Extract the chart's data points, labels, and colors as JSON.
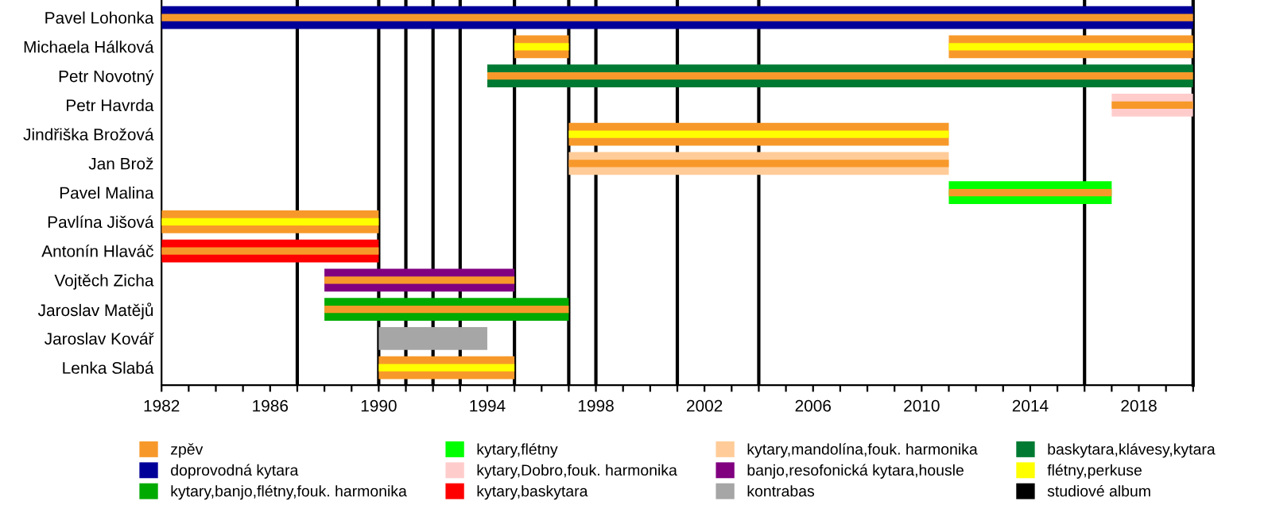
{
  "chart_data": {
    "type": "bar",
    "orientation": "horizontal",
    "categories": [
      "Pavel Lohonka",
      "Michaela Hálková",
      "Petr Novotný",
      "Petr Havrda",
      "Jindřiška Brožová",
      "Jan Brož",
      "Pavel Malina",
      "Pavlína Jišová",
      "Antonín Hlaváč",
      "Vojtěch Zicha",
      "Jaroslav Matějů",
      "Jaroslav Kovář",
      "Lenka Slabá"
    ],
    "series": [
      {
        "name": "zpěv",
        "color": "#f7992a",
        "base": [
          null,
          1995,
          null,
          null,
          1997,
          null,
          null,
          1982,
          null,
          null,
          null,
          null,
          1990
        ],
        "values": [
          null,
          2,
          null,
          null,
          14,
          null,
          null,
          8,
          null,
          null,
          null,
          null,
          5
        ]
      },
      {
        "color": "#f7992a",
        "base": [
          null,
          2011,
          null,
          null,
          null,
          null,
          null,
          null,
          null,
          null,
          null,
          null,
          null
        ],
        "values": [
          null,
          9,
          null,
          null,
          null,
          null,
          null,
          null,
          null,
          null,
          null,
          null,
          null
        ]
      },
      {
        "name": "doprovodná kytara",
        "color": "#000099",
        "base": [
          1982,
          null,
          null,
          null,
          null,
          null,
          null,
          null,
          null,
          null,
          null,
          null,
          null
        ],
        "values": [
          38,
          null,
          null,
          null,
          null,
          null,
          null,
          null,
          null,
          null,
          null,
          null,
          null
        ]
      },
      {
        "name": "kytary,banjo,flétny,fouk. harmonika",
        "color": "#00aa00",
        "base": [
          null,
          null,
          null,
          null,
          null,
          null,
          null,
          null,
          null,
          null,
          1988,
          null,
          null
        ],
        "values": [
          null,
          null,
          null,
          null,
          null,
          null,
          null,
          null,
          null,
          null,
          9,
          null,
          null
        ]
      },
      {
        "name": "kytary,flétny",
        "color": "#00ff00",
        "base": [
          null,
          null,
          null,
          null,
          null,
          null,
          2011,
          null,
          null,
          null,
          null,
          null,
          null
        ],
        "values": [
          null,
          null,
          null,
          null,
          null,
          null,
          6,
          null,
          null,
          null,
          null,
          null,
          null
        ]
      },
      {
        "name": "kytary,Dobro,fouk. harmonika",
        "color": "#ffcccc",
        "base": [
          null,
          null,
          null,
          2017,
          null,
          null,
          null,
          null,
          null,
          null,
          null,
          null,
          null
        ],
        "values": [
          null,
          null,
          null,
          3,
          null,
          null,
          null,
          null,
          null,
          null,
          null,
          null,
          null
        ]
      },
      {
        "name": "kytary,baskytara",
        "color": "#ff0000",
        "base": [
          null,
          null,
          null,
          null,
          null,
          null,
          null,
          null,
          1982,
          null,
          null,
          null,
          null
        ],
        "values": [
          null,
          null,
          null,
          null,
          null,
          null,
          null,
          null,
          8,
          null,
          null,
          null,
          null
        ]
      },
      {
        "name": "kytary,mandolína,fouk. harmonika",
        "color": "#ffcc99",
        "base": [
          null,
          null,
          null,
          null,
          null,
          1997,
          null,
          null,
          null,
          null,
          null,
          null,
          null
        ],
        "values": [
          null,
          null,
          null,
          null,
          null,
          14,
          null,
          null,
          null,
          null,
          null,
          null,
          null
        ]
      },
      {
        "name": "banjo,resofonická kytara,housle",
        "color": "#800080",
        "base": [
          null,
          null,
          null,
          null,
          null,
          null,
          null,
          null,
          null,
          1988,
          null,
          null,
          null
        ],
        "values": [
          null,
          null,
          null,
          null,
          null,
          null,
          null,
          null,
          null,
          7,
          null,
          null,
          null
        ]
      },
      {
        "name": "kontrabas",
        "color": "#a6a6a6",
        "base": [
          null,
          null,
          null,
          null,
          null,
          null,
          null,
          null,
          null,
          null,
          null,
          1990,
          null
        ],
        "values": [
          null,
          null,
          null,
          null,
          null,
          null,
          null,
          null,
          null,
          null,
          null,
          4,
          null
        ]
      },
      {
        "name": "baskytara,klávesy,kytara",
        "color": "#007a33",
        "base": [
          null,
          null,
          1994,
          null,
          null,
          null,
          null,
          null,
          null,
          null,
          null,
          null,
          null
        ],
        "values": [
          null,
          null,
          26,
          null,
          null,
          null,
          null,
          null,
          null,
          null,
          null,
          null,
          null
        ]
      },
      {
        "name": "flétny,perkuse",
        "color": "#ffff00",
        "base": [
          null,
          1995,
          null,
          null,
          1997,
          null,
          null,
          1982,
          null,
          null,
          null,
          null,
          1990
        ],
        "values": [
          null,
          2,
          null,
          null,
          14,
          null,
          null,
          8,
          null,
          null,
          null,
          null,
          5
        ]
      },
      {
        "color": "#ffff00",
        "base": [
          null,
          2011,
          null,
          null,
          null,
          null,
          null,
          null,
          null,
          null,
          null,
          null,
          null
        ],
        "values": [
          null,
          9,
          null,
          null,
          null,
          null,
          null,
          null,
          null,
          null,
          null,
          null,
          null
        ]
      },
      {
        "color": "#f7992a",
        "base": [
          1982,
          null,
          1994,
          2017,
          null,
          1997,
          2011,
          null,
          1982,
          1988,
          1988,
          null,
          null
        ],
        "values": [
          38,
          null,
          26,
          3,
          null,
          14,
          6,
          null,
          8,
          7,
          9,
          null,
          null
        ]
      }
    ],
    "xlim": [
      1982,
      2020
    ],
    "xticks": [
      1982,
      {
        "value": 1983,
        "label": null
      },
      {
        "value": 1984,
        "label": null
      },
      {
        "value": 1985,
        "label": null
      },
      1986,
      {
        "value": 1987,
        "label": null
      },
      {
        "value": 1988,
        "label": null
      },
      {
        "value": 1989,
        "label": null
      },
      1990,
      {
        "value": 1991,
        "label": null
      },
      {
        "value": 1992,
        "label": null
      },
      {
        "value": 1993,
        "label": null
      },
      1994,
      {
        "value": 1995,
        "label": null
      },
      {
        "value": 1996,
        "label": null
      },
      {
        "value": 1997,
        "label": null
      },
      1998,
      {
        "value": 1999,
        "label": null
      },
      {
        "value": 2000,
        "label": null
      },
      {
        "value": 2001,
        "label": null
      },
      2002,
      {
        "value": 2003,
        "label": null
      },
      {
        "value": 2004,
        "label": null
      },
      {
        "value": 2005,
        "label": null
      },
      2006,
      {
        "value": 2007,
        "label": null
      },
      {
        "value": 2008,
        "label": null
      },
      {
        "value": 2009,
        "label": null
      },
      2010,
      {
        "value": 2011,
        "label": null
      },
      {
        "value": 2012,
        "label": null
      },
      {
        "value": 2013,
        "label": null
      },
      2014,
      {
        "value": 2015,
        "label": null
      },
      {
        "value": 2016,
        "label": null
      },
      {
        "value": 2017,
        "label": null
      },
      2018,
      {
        "value": 2019,
        "label": null
      },
      {
        "value": 2020,
        "label": null
      }
    ],
    "ref_lines": [
      {
        "axis": "x",
        "value": 1987,
        "color": "#000000",
        "label": "studiové album"
      },
      {
        "axis": "x",
        "value": 1990,
        "color": "#000000"
      },
      {
        "axis": "x",
        "value": 1991,
        "color": "#000000"
      },
      {
        "axis": "x",
        "value": 1992,
        "color": "#000000"
      },
      {
        "axis": "x",
        "value": 1993,
        "color": "#000000"
      },
      {
        "axis": "x",
        "value": 1995,
        "color": "#000000"
      },
      {
        "axis": "x",
        "value": 1997,
        "color": "#000000"
      },
      {
        "axis": "x",
        "value": 1998,
        "color": "#000000"
      },
      {
        "axis": "x",
        "value": 2001,
        "color": "#000000"
      },
      {
        "axis": "x",
        "value": 2004,
        "color": "#000000"
      },
      {
        "axis": "x",
        "value": 2016,
        "color": "#000000"
      }
    ],
    "legend": "bottom"
  }
}
